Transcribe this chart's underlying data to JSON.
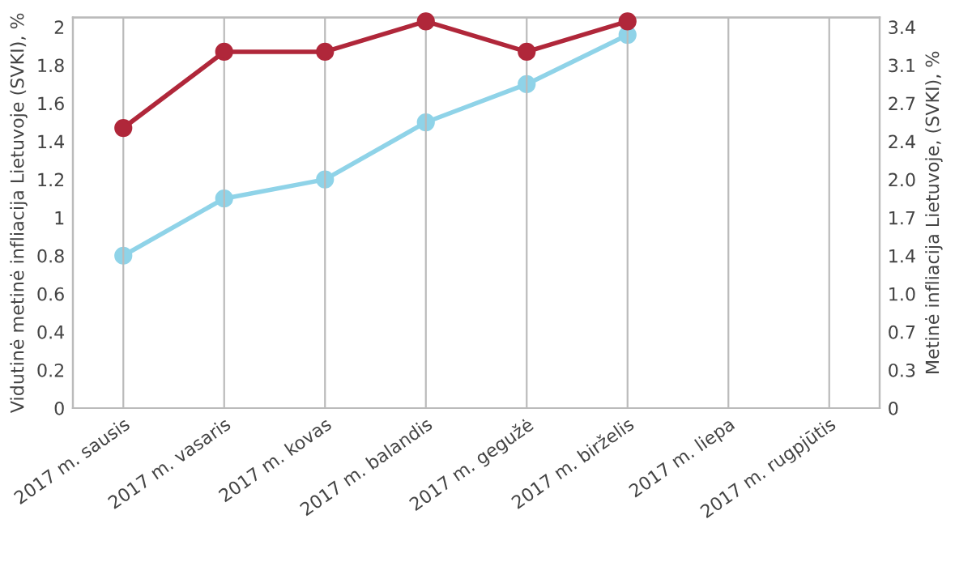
{
  "chart_data": {
    "type": "line",
    "ylabel": "Vidutinė metinė infliacija Lietuvoje (SVKI), %",
    "y2label": "Metinė infliacija Lietuvoje, (SVKI), %",
    "categories": [
      "2017 m. sausis",
      "2017 m. vasaris",
      "2017 m. kovas",
      "2017 m. balandis",
      "2017 m. gegužė",
      "2017 m. birželis",
      "2017 m. liepa",
      "2017 m. rugpjūtis"
    ],
    "series": [
      {
        "color": "#8fd3e8",
        "values": [
          1.36,
          1.87,
          2.04,
          2.55,
          2.89,
          3.33,
          null,
          null
        ],
        "axis": "y2"
      },
      {
        "color": "#b0273a",
        "values": [
          1.47,
          1.87,
          1.87,
          2.03,
          1.87,
          2.03,
          null,
          null
        ]
      }
    ],
    "ylim": [
      0,
      2.05
    ],
    "yticks": [
      0,
      0.2,
      0.4,
      0.6,
      0.8,
      1,
      1.2,
      1.4,
      1.6,
      1.8,
      2
    ],
    "y2lim": [
      0,
      3.485
    ],
    "y2ticks": [
      0,
      {
        "value": 0.34,
        "label": "0.3"
      },
      {
        "value": 0.68,
        "label": "0.7"
      },
      {
        "value": 1.02,
        "label": "1.0"
      },
      {
        "value": 1.36,
        "label": "1.4"
      },
      {
        "value": 1.7,
        "label": "1.7"
      },
      {
        "value": 2.04,
        "label": "2.0"
      },
      {
        "value": 2.38,
        "label": "2.4"
      },
      {
        "value": 2.72,
        "label": "2.7"
      },
      {
        "value": 3.06,
        "label": "3.1"
      },
      {
        "value": 3.4,
        "label": "3.4"
      }
    ],
    "grid": "x",
    "marker": "circle",
    "line_style": "solid"
  }
}
